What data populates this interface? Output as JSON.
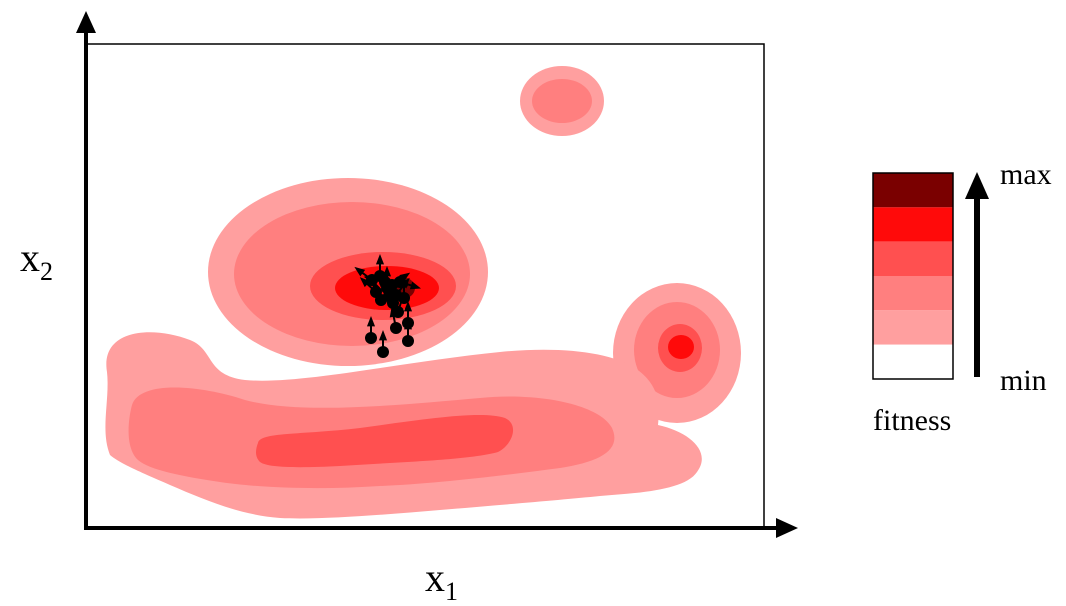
{
  "axes": {
    "x_label": {
      "base": "x",
      "sub": "1"
    },
    "y_label": {
      "base": "x",
      "sub": "2"
    }
  },
  "legend": {
    "title": "fitness",
    "max_label": "max",
    "min_label": "min",
    "levels": [
      "#7a0000",
      "#ff0a0a",
      "#ff5050",
      "#ff7f7f",
      "#ff9f9f",
      "#ffffff"
    ]
  },
  "colors": {
    "level1": "#ff9f9f",
    "level2": "#ff7f7f",
    "level3": "#ff5050",
    "level4": "#ff0a0a",
    "level5": "#7a0000",
    "markers": "#000000"
  }
}
